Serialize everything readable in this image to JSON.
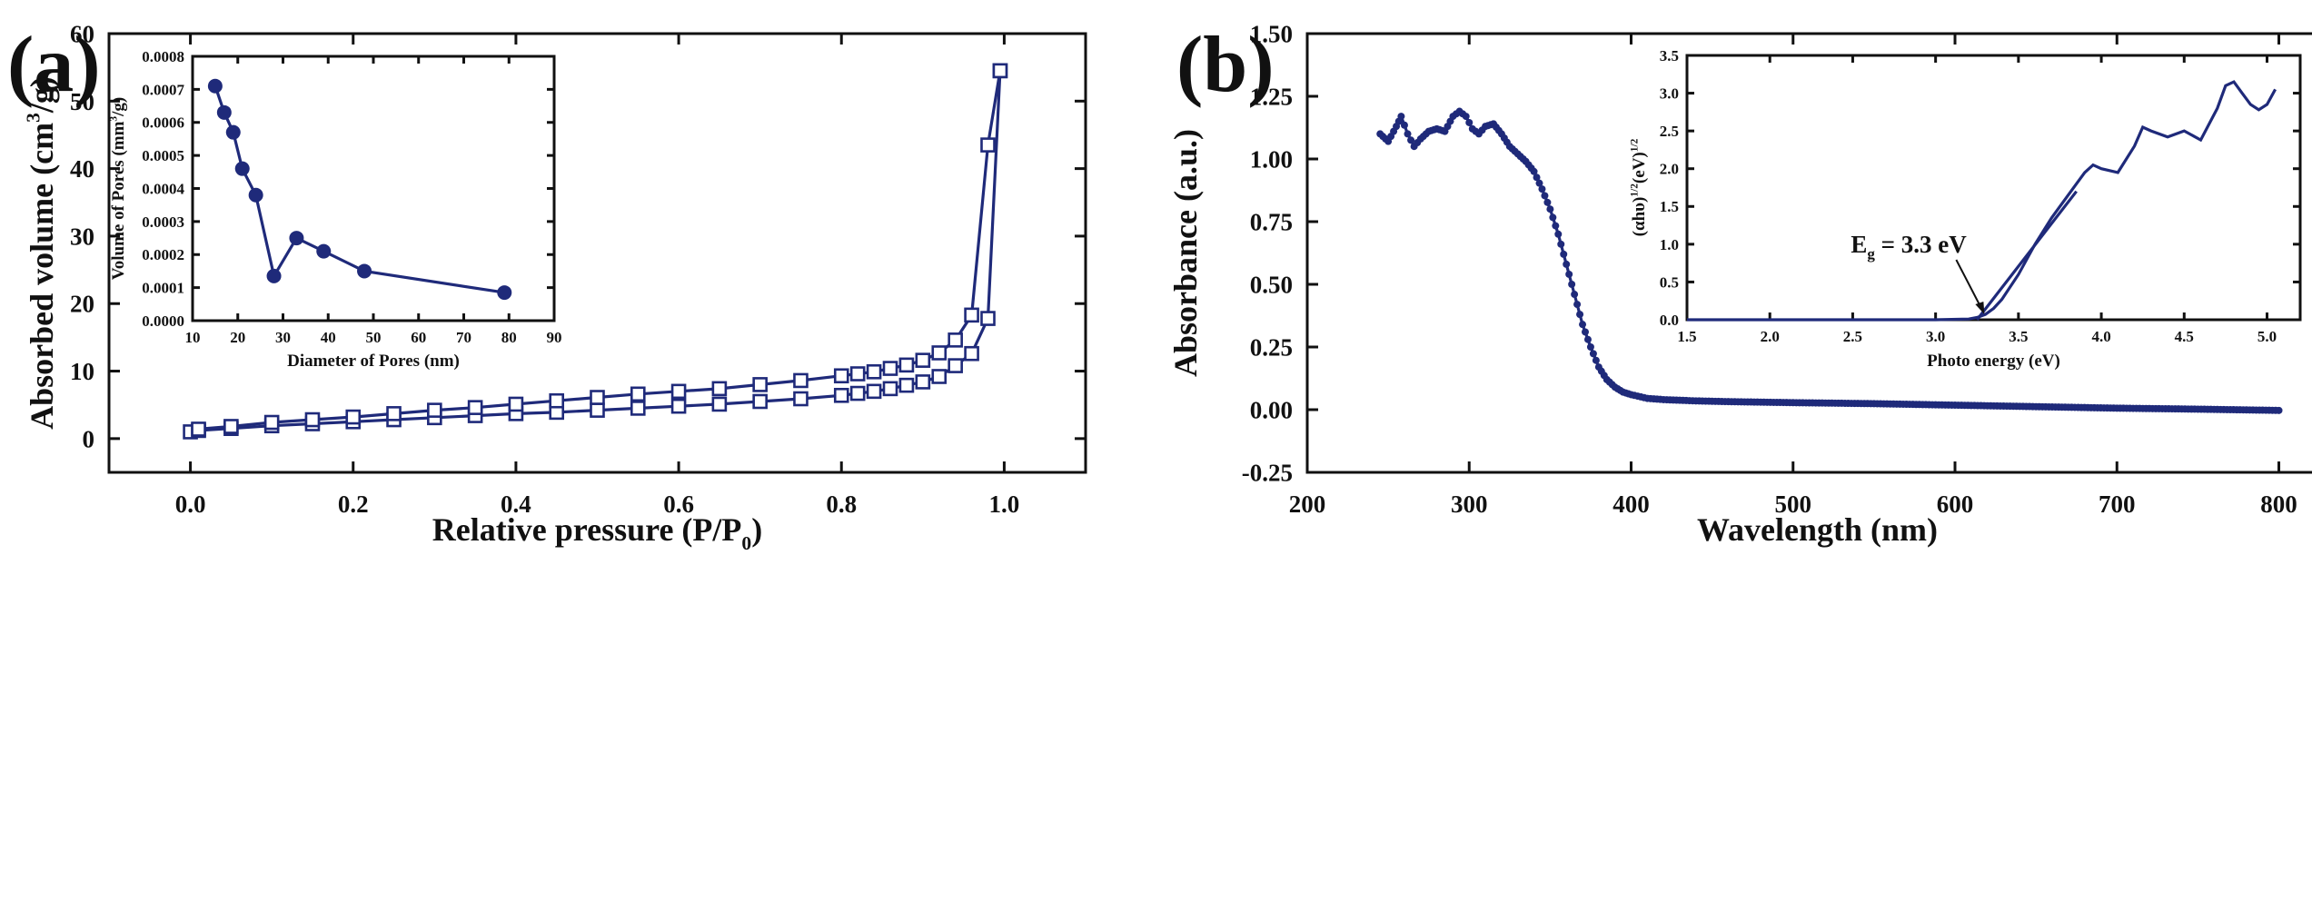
{
  "panels": {
    "a": {
      "label": "(a)"
    },
    "b": {
      "label": "(b)"
    }
  },
  "chart_data": [
    {
      "id": "a-main",
      "type": "line",
      "xlabel": "Relative pressure (P/P",
      "xlabel_sub": "0",
      "xlabel_close": ")",
      "ylabel": "Absorbed volume (cm",
      "ylabel_sup": "3",
      "ylabel_close": "/g)",
      "xlim": [
        -0.1,
        1.1
      ],
      "ylim": [
        -5,
        60
      ],
      "xticks": [
        0.0,
        0.2,
        0.4,
        0.6,
        0.8,
        1.0
      ],
      "xtick_labels": [
        "0.0",
        "0.2",
        "0.4",
        "0.6",
        "0.8",
        "1.0"
      ],
      "yticks": [
        0,
        10,
        20,
        30,
        40,
        50,
        60
      ],
      "ytick_labels": [
        "0",
        "10",
        "20",
        "30",
        "40",
        "50",
        "60"
      ],
      "series": [
        {
          "name": "adsorption",
          "x": [
            0.0,
            0.01,
            0.05,
            0.1,
            0.15,
            0.2,
            0.25,
            0.3,
            0.35,
            0.4,
            0.45,
            0.5,
            0.55,
            0.6,
            0.65,
            0.7,
            0.75,
            0.8,
            0.82,
            0.84,
            0.86,
            0.88,
            0.9,
            0.92,
            0.94,
            0.96,
            0.98,
            0.995
          ],
          "y": [
            1.0,
            1.2,
            1.5,
            1.9,
            2.2,
            2.5,
            2.8,
            3.1,
            3.4,
            3.7,
            3.9,
            4.2,
            4.5,
            4.8,
            5.1,
            5.5,
            5.9,
            6.4,
            6.7,
            7.0,
            7.4,
            7.9,
            8.4,
            9.2,
            10.8,
            12.6,
            17.8,
            54.5
          ]
        },
        {
          "name": "desorption",
          "x": [
            0.995,
            0.98,
            0.96,
            0.94,
            0.92,
            0.9,
            0.88,
            0.86,
            0.84,
            0.82,
            0.8,
            0.75,
            0.7,
            0.65,
            0.6,
            0.55,
            0.5,
            0.45,
            0.4,
            0.35,
            0.3,
            0.25,
            0.2,
            0.15,
            0.1,
            0.05,
            0.01
          ],
          "y": [
            54.5,
            43.5,
            18.3,
            14.6,
            12.7,
            11.6,
            10.9,
            10.4,
            9.9,
            9.6,
            9.3,
            8.6,
            8.0,
            7.4,
            7.0,
            6.6,
            6.1,
            5.6,
            5.1,
            4.6,
            4.2,
            3.7,
            3.2,
            2.8,
            2.4,
            1.8,
            1.4
          ]
        }
      ]
    },
    {
      "id": "a-inset",
      "type": "line",
      "xlabel": "Diameter of Pores (nm)",
      "ylabel": "Volume of Pores (mm",
      "ylabel_sup": "3",
      "ylabel_close": "/g)",
      "xlim": [
        10,
        90
      ],
      "ylim": [
        0,
        0.0008
      ],
      "xticks": [
        10,
        20,
        30,
        40,
        50,
        60,
        70,
        80,
        90
      ],
      "xtick_labels": [
        "10",
        "20",
        "30",
        "40",
        "50",
        "60",
        "70",
        "80",
        "90"
      ],
      "yticks": [
        0,
        0.0001,
        0.0002,
        0.0003,
        0.0004,
        0.0005,
        0.0006,
        0.0007,
        0.0008
      ],
      "ytick_labels": [
        "0.0000",
        "0.0001",
        "0.0002",
        "0.0003",
        "0.0004",
        "0.0005",
        "0.0006",
        "0.0007",
        "0.0008"
      ],
      "series": [
        {
          "name": "pore volume",
          "x": [
            15,
            17,
            19,
            21,
            24,
            28,
            33,
            39,
            48,
            79
          ],
          "y": [
            0.00071,
            0.00063,
            0.00057,
            0.00046,
            0.00038,
            0.000135,
            0.00025,
            0.00021,
            0.00015,
            8.5e-05
          ]
        }
      ]
    },
    {
      "id": "b-main",
      "type": "line",
      "xlabel": "Wavelength (nm)",
      "ylabel": "Absorbance (a.u.)",
      "xlim": [
        200,
        830
      ],
      "ylim": [
        -0.25,
        1.5
      ],
      "xticks": [
        200,
        300,
        400,
        500,
        600,
        700,
        800
      ],
      "xtick_labels": [
        "200",
        "300",
        "400",
        "500",
        "600",
        "700",
        "800"
      ],
      "yticks": [
        -0.25,
        0.0,
        0.25,
        0.5,
        0.75,
        1.0,
        1.25,
        1.5
      ],
      "ytick_labels": [
        "-0.25",
        "0.00",
        "0.25",
        "0.50",
        "0.75",
        "1.00",
        "1.25",
        "1.50"
      ],
      "series": [
        {
          "name": "absorbance",
          "x": [
            245,
            250,
            255,
            258,
            262,
            266,
            270,
            275,
            280,
            285,
            290,
            294,
            298,
            302,
            306,
            310,
            315,
            320,
            325,
            330,
            335,
            340,
            345,
            350,
            355,
            360,
            365,
            370,
            375,
            380,
            385,
            390,
            395,
            400,
            410,
            420,
            440,
            460,
            500,
            550,
            600,
            650,
            700,
            750,
            800
          ],
          "y": [
            1.1,
            1.07,
            1.13,
            1.17,
            1.1,
            1.05,
            1.08,
            1.11,
            1.12,
            1.11,
            1.17,
            1.19,
            1.17,
            1.12,
            1.1,
            1.13,
            1.14,
            1.1,
            1.05,
            1.02,
            0.99,
            0.95,
            0.88,
            0.8,
            0.7,
            0.58,
            0.46,
            0.34,
            0.25,
            0.17,
            0.12,
            0.09,
            0.07,
            0.06,
            0.045,
            0.04,
            0.035,
            0.032,
            0.028,
            0.024,
            0.018,
            0.012,
            0.006,
            0.002,
            -0.003
          ]
        }
      ]
    },
    {
      "id": "b-inset",
      "type": "line",
      "xlabel": "Photo energy (eV)",
      "ylabel": "(αhυ)",
      "ylabel_sup": "1/2",
      "ylabel_mid": "(eV)",
      "ylabel_sup2": "1/2",
      "xlim": [
        1.5,
        5.2
      ],
      "ylim": [
        0,
        3.5
      ],
      "xticks": [
        1.5,
        2.0,
        2.5,
        3.0,
        3.5,
        4.0,
        4.5,
        5.0
      ],
      "xtick_labels": [
        "1.5",
        "2.0",
        "2.5",
        "3.0",
        "3.5",
        "4.0",
        "4.5",
        "5.0"
      ],
      "yticks": [
        0,
        0.5,
        1.0,
        1.5,
        2.0,
        2.5,
        3.0,
        3.5
      ],
      "ytick_labels": [
        "0.0",
        "0.5",
        "1.0",
        "1.5",
        "2.0",
        "2.5",
        "3.0",
        "3.5"
      ],
      "annotation": {
        "text_main": "E",
        "text_sub": "g",
        "text_rest": " = 3.3 eV",
        "x": 3.3,
        "y": 0
      },
      "series": [
        {
          "name": "tauc",
          "x": [
            1.5,
            2.0,
            2.5,
            3.0,
            3.2,
            3.25,
            3.3,
            3.35,
            3.4,
            3.5,
            3.6,
            3.7,
            3.8,
            3.9,
            3.95,
            4.0,
            4.1,
            4.2,
            4.25,
            4.3,
            4.4,
            4.5,
            4.6,
            4.7,
            4.75,
            4.8,
            4.85,
            4.9,
            4.95,
            5.0,
            5.05
          ],
          "y": [
            0.0,
            0.0,
            0.0,
            0.0,
            0.01,
            0.03,
            0.07,
            0.15,
            0.27,
            0.6,
            1.0,
            1.35,
            1.65,
            1.95,
            2.05,
            2.0,
            1.95,
            2.3,
            2.55,
            2.5,
            2.42,
            2.5,
            2.38,
            2.8,
            3.1,
            3.15,
            3.0,
            2.85,
            2.78,
            2.85,
            3.05
          ]
        },
        {
          "name": "linear fit",
          "x": [
            3.25,
            3.85
          ],
          "y": [
            0.0,
            1.7
          ]
        }
      ]
    }
  ]
}
